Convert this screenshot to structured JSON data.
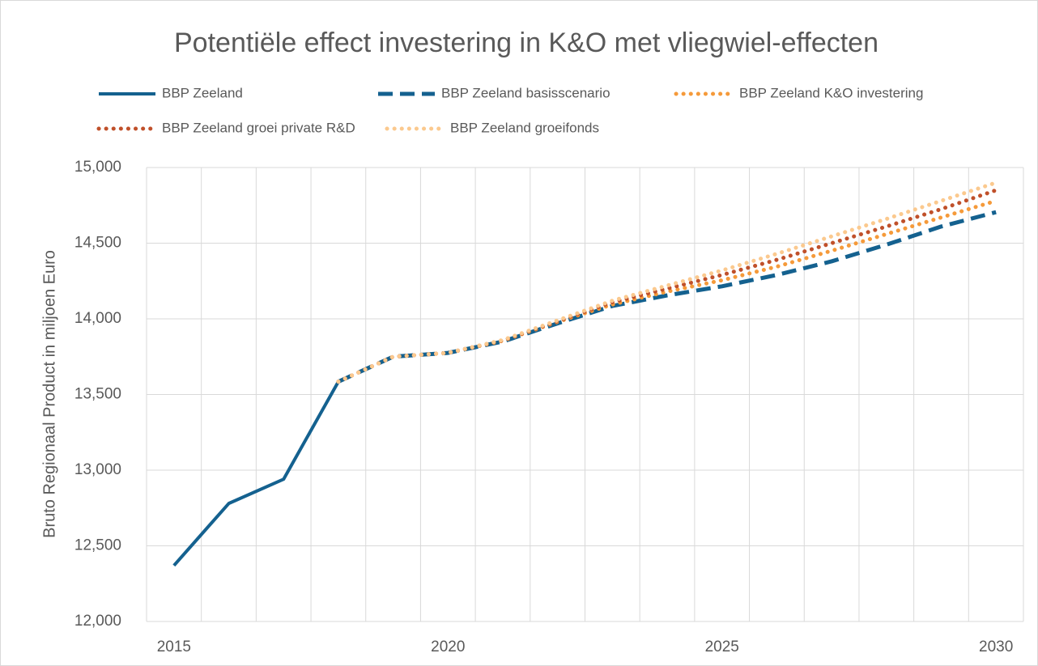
{
  "chart_data": {
    "type": "line",
    "title": "Potentiële effect investering in K&O met vliegwiel-effecten",
    "y_label": "Bruto Regionaal Product in miljoen Euro",
    "categories": [
      "2015",
      null,
      null,
      null,
      null,
      "2020",
      null,
      null,
      null,
      null,
      "2025",
      null,
      null,
      null,
      null,
      "2030"
    ],
    "series": [
      {
        "name": "BBP Zeeland",
        "color": "#14618f",
        "style": "solid",
        "values": [
          12370,
          12780,
          12940,
          13585,
          null,
          null,
          null,
          null,
          null,
          null,
          null,
          null,
          null,
          null,
          null,
          null
        ]
      },
      {
        "name": "BBP Zeeland basisscenario",
        "color": "#14618f",
        "style": "dashed",
        "values": [
          null,
          null,
          null,
          13585,
          13750,
          13775,
          13850,
          13970,
          14085,
          14155,
          14215,
          14290,
          14380,
          14490,
          14610,
          14705
        ]
      },
      {
        "name": "BBP Zeeland K&O investering",
        "color": "#f59a3a",
        "style": "dotted",
        "values": [
          null,
          null,
          null,
          13585,
          13750,
          13775,
          13855,
          13980,
          14095,
          14180,
          14255,
          14345,
          14450,
          14560,
          14670,
          14780
        ]
      },
      {
        "name": "BBP Zeeland groei private R&D",
        "color": "#c0502a",
        "style": "dotted",
        "values": [
          null,
          null,
          null,
          13585,
          13750,
          13775,
          13858,
          13985,
          14110,
          14200,
          14290,
          14390,
          14500,
          14610,
          14725,
          14850
        ]
      },
      {
        "name": "BBP Zeeland groeifonds",
        "color": "#fbc98e",
        "style": "dotted",
        "values": [
          null,
          null,
          null,
          13585,
          13750,
          13775,
          13860,
          13990,
          14120,
          14220,
          14320,
          14430,
          14545,
          14660,
          14780,
          14900
        ]
      }
    ],
    "ylim": [
      12000,
      15000
    ],
    "yticks": [
      {
        "value": 12000,
        "label": "12,000"
      },
      {
        "value": 12500,
        "label": "12,500"
      },
      {
        "value": 13000,
        "label": "13,000"
      },
      {
        "value": 13500,
        "label": "13,500"
      },
      {
        "value": 14000,
        "label": "14,000"
      },
      {
        "value": 14500,
        "label": "14,500"
      },
      {
        "value": 15000,
        "label": "15,000"
      }
    ],
    "grid": true,
    "legend": "top"
  }
}
